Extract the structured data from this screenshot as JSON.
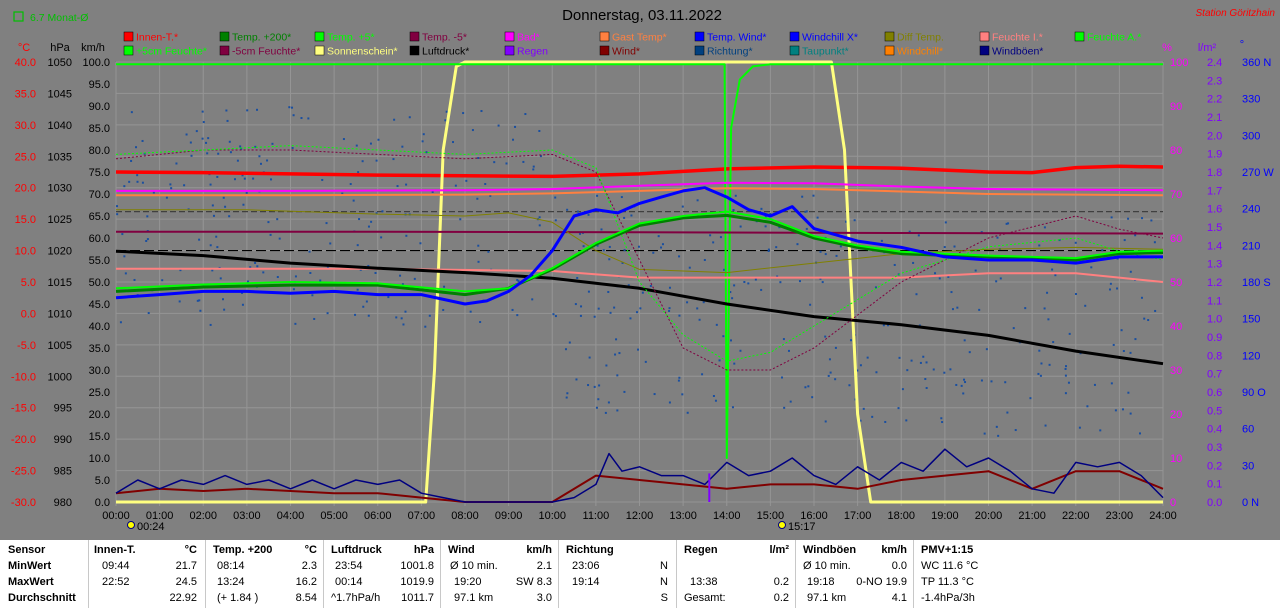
{
  "header": {
    "title": "Donnerstag, 03.11.2022",
    "station": "Station Göritzhain",
    "monthly": "6.7 Monat-Ø"
  },
  "legend": [
    {
      "label": "Innen-T.*",
      "color": "#ff0000"
    },
    {
      "label": "Temp. +200*",
      "color": "#008000"
    },
    {
      "label": "Temp. +5*",
      "color": "#00ff00"
    },
    {
      "label": "Temp. -5*",
      "color": "#800040"
    },
    {
      "label": "Bad*",
      "color": "#ff00ff"
    },
    {
      "label": "Gast Temp*",
      "color": "#ff8040"
    },
    {
      "label": "Temp. Wind*",
      "color": "#0000ff"
    },
    {
      "label": "Windchill X*",
      "color": "#0000ff"
    },
    {
      "label": "Diff Temp.",
      "color": "#808000"
    },
    {
      "label": "Feuchte I.*",
      "color": "#ff8080"
    },
    {
      "label": "Feuchte A.*",
      "color": "#00ff00"
    },
    {
      "label": "+5cm Feuchte*",
      "color": "#00ff00"
    },
    {
      "label": "-5cm Feuchte*",
      "color": "#800040"
    },
    {
      "label": "Sonnenschein*",
      "color": "#ffff80"
    },
    {
      "label": "Luftdruck*",
      "color": "#000000"
    },
    {
      "label": "Regen",
      "color": "#8000ff"
    },
    {
      "label": "Wind*",
      "color": "#800000"
    },
    {
      "label": "Richtung*",
      "color": "#004080"
    },
    {
      "label": "Taupunkt*",
      "color": "#008080"
    },
    {
      "label": "Windchill*",
      "color": "#ff8000"
    },
    {
      "label": "Windböen*",
      "color": "#000080"
    }
  ],
  "axes": {
    "unit_c": "°C",
    "unit_hpa": "hPa",
    "unit_kmh": "km/h",
    "unit_pct": "%",
    "unit_lm2": "l/m²",
    "unit_deg": "°",
    "celsius": [
      "40.0",
      "35.0",
      "30.0",
      "25.0",
      "20.0",
      "15.0",
      "10.0",
      "5.0",
      "0.0",
      "-5.0",
      "-10.0",
      "-15.0",
      "-20.0",
      "-25.0",
      "-30.0"
    ],
    "hpa": [
      "1050",
      "1045",
      "1040",
      "1035",
      "1030",
      "1025",
      "1020",
      "1015",
      "1010",
      "1005",
      "1000",
      "995",
      "990",
      "985",
      "980"
    ],
    "kmh": [
      "100.0",
      "95.0",
      "90.0",
      "85.0",
      "80.0",
      "75.0",
      "70.0",
      "65.0",
      "60.0",
      "55.0",
      "50.0",
      "45.0",
      "40.0",
      "35.0",
      "30.0",
      "25.0",
      "20.0",
      "15.0",
      "10.0",
      "5.0",
      "0.0"
    ],
    "pct": [
      "100",
      "90",
      "80",
      "70",
      "60",
      "50",
      "40",
      "30",
      "20",
      "10",
      "0"
    ],
    "rain": [
      "2.4",
      "2.3",
      "2.2",
      "2.1",
      "2.0",
      "1.9",
      "1.8",
      "1.7",
      "1.6",
      "1.5",
      "1.4",
      "1.3",
      "1.2",
      "1.1",
      "1.0",
      "0.9",
      "0.8",
      "0.7",
      "0.6",
      "0.5",
      "0.4",
      "0.3",
      "0.2",
      "0.1",
      "0.0"
    ],
    "direction": [
      "360 N",
      "330",
      "300",
      "270 W",
      "240",
      "210",
      "180 S",
      "150",
      "120",
      "90 O",
      "60",
      "30",
      "0 N"
    ],
    "hours": [
      "00:00",
      "01:00",
      "02:00",
      "03:00",
      "04:00",
      "05:00",
      "06:00",
      "07:00",
      "08:00",
      "09:00",
      "10:00",
      "11:00",
      "12:00",
      "13:00",
      "14:00",
      "15:00",
      "16:00",
      "17:00",
      "18:00",
      "19:00",
      "20:00",
      "21:00",
      "22:00",
      "23:00",
      "24:00"
    ],
    "sunrise": "00:24",
    "sunset": "15:17"
  },
  "chart_data": {
    "type": "line",
    "x_unit": "hour",
    "xlim": [
      0,
      24
    ],
    "ylim_celsius": [
      -30,
      40
    ],
    "ylim_kmh": [
      0,
      100
    ],
    "ylim_pct": [
      0,
      100
    ],
    "series": [
      {
        "name": "Innen-T.*",
        "axis": "celsius",
        "color": "#ff0000",
        "width": 3.5,
        "x": [
          0,
          2,
          4,
          6,
          8,
          10,
          12,
          14,
          16,
          18,
          20,
          21,
          22,
          23,
          24
        ],
        "y": [
          22.5,
          22.4,
          22.2,
          22.0,
          21.9,
          21.8,
          22.2,
          23.0,
          23.3,
          23.1,
          22.5,
          22.4,
          23.2,
          23.4,
          23.3
        ]
      },
      {
        "name": "Sonnenschein*",
        "axis": "pct",
        "color": "#ffff80",
        "width": 3,
        "x": [
          0,
          7.1,
          7.3,
          7.5,
          7.8,
          8,
          16.4,
          16.7,
          17,
          17.3,
          24
        ],
        "y": [
          0,
          0,
          30,
          80,
          99,
          100,
          100,
          80,
          20,
          0,
          0
        ]
      },
      {
        "name": "Feuchte A.*",
        "axis": "pct",
        "color": "#00ff00",
        "width": 2,
        "x": [
          0,
          13.95,
          14.0,
          14.1,
          14.3,
          14.6,
          15,
          24
        ],
        "y": [
          99.5,
          99.5,
          10,
          85,
          96,
          99,
          99.5,
          99.5
        ]
      },
      {
        "name": "Bad*",
        "axis": "celsius",
        "color": "#ff00ff",
        "width": 2,
        "x": [
          0,
          4,
          8,
          10,
          12,
          14,
          16,
          18,
          20,
          22,
          24
        ],
        "y": [
          19.5,
          19.5,
          19.6,
          19.8,
          20.3,
          20.8,
          20.7,
          20.2,
          19.8,
          19.7,
          19.6
        ]
      },
      {
        "name": "Gast Temp*",
        "axis": "celsius",
        "color": "#ff8040",
        "width": 2,
        "x": [
          0,
          4,
          8,
          10,
          12,
          14,
          16,
          18,
          20,
          22,
          24
        ],
        "y": [
          18.8,
          18.8,
          18.9,
          19.1,
          19.5,
          19.9,
          19.8,
          19.4,
          19.0,
          18.9,
          18.8
        ]
      },
      {
        "name": "Temp. -5*",
        "axis": "celsius",
        "color": "#800040",
        "width": 2,
        "x": [
          0,
          6,
          12,
          18,
          24
        ],
        "y": [
          13.0,
          13.0,
          12.9,
          12.8,
          12.7
        ]
      },
      {
        "name": "Feuchte I.*",
        "axis": "pct",
        "color": "#ff8080",
        "width": 2,
        "x": [
          0,
          6,
          10,
          12,
          14,
          16,
          18,
          20,
          22,
          24
        ],
        "y": [
          53,
          53,
          52.5,
          51,
          51,
          51,
          51,
          52,
          52,
          50
        ]
      },
      {
        "name": "Luftdruck*",
        "axis": "hpa",
        "color": "#000000",
        "width": 3,
        "x": [
          0,
          2,
          4,
          6,
          8,
          10,
          12,
          14,
          16,
          18,
          20,
          22,
          24
        ],
        "y": [
          1019.9,
          1019.2,
          1018.0,
          1017.2,
          1016.5,
          1015.6,
          1014.0,
          1011.5,
          1009.5,
          1008.2,
          1006.5,
          1004.0,
          1002.0
        ]
      },
      {
        "name": "Diff Temp.",
        "axis": "celsius",
        "color": "#808000",
        "width": 1,
        "x": [
          0,
          3,
          6,
          8,
          9,
          10,
          11,
          12,
          14,
          16,
          18,
          20,
          22,
          24
        ],
        "y": [
          16.5,
          16.5,
          15.8,
          15.5,
          16.0,
          14.5,
          10.0,
          7.0,
          6.5,
          8.0,
          9.5,
          10.2,
          10.5,
          10.2
        ]
      },
      {
        "name": "-5cm Feuchte*",
        "axis": "pct",
        "color": "#800040",
        "width": 1,
        "dash": "2,2",
        "x": [
          0,
          2,
          4,
          6,
          8,
          10,
          11,
          12,
          13,
          14,
          15,
          16,
          18,
          20,
          22,
          23,
          24
        ],
        "y": [
          78,
          80,
          80,
          79,
          78,
          79,
          75,
          55,
          35,
          30,
          30,
          35,
          50,
          60,
          65,
          62,
          60
        ]
      },
      {
        "name": "+5cm Feuchte*",
        "axis": "pct",
        "color": "#00ff00",
        "width": 1,
        "dash": "2,2",
        "x": [
          0,
          2,
          4,
          6,
          8,
          10,
          11,
          12,
          13,
          14,
          15,
          16,
          18,
          20,
          22,
          23,
          24
        ],
        "y": [
          79,
          80,
          81,
          80,
          79,
          80,
          76,
          50,
          38,
          32,
          34,
          40,
          52,
          58,
          60,
          57,
          55
        ]
      },
      {
        "name": "Temp. +200*",
        "axis": "celsius",
        "color": "#008000",
        "width": 3,
        "x": [
          0,
          2,
          4,
          6,
          8,
          9,
          10,
          11,
          12,
          13,
          14,
          15,
          16,
          17,
          18,
          20,
          22,
          23,
          24
        ],
        "y": [
          3.5,
          4.2,
          4.5,
          4.5,
          3.0,
          4.0,
          7.0,
          11.0,
          14.0,
          15.2,
          15.6,
          14.5,
          12.0,
          10.5,
          9.5,
          9.0,
          8.5,
          9.5,
          9.7
        ]
      },
      {
        "name": "Temp. +5*",
        "axis": "celsius",
        "color": "#00ff00",
        "width": 2,
        "x": [
          0,
          2,
          4,
          6,
          8,
          9,
          10,
          11,
          12,
          13,
          14,
          15,
          16,
          17,
          18,
          20,
          22,
          23,
          24
        ],
        "y": [
          4.0,
          4.6,
          5.0,
          4.8,
          3.5,
          4.0,
          7.2,
          11.2,
          14.3,
          15.5,
          16.2,
          15.0,
          12.3,
          10.8,
          9.8,
          9.2,
          8.8,
          9.8,
          10.0
        ]
      },
      {
        "name": "Temp. Wind*",
        "axis": "celsius",
        "color": "#0000ff",
        "width": 3,
        "x": [
          0,
          1,
          2,
          3,
          4,
          5,
          6,
          7,
          8,
          8.5,
          9,
          9.5,
          10,
          10.5,
          11,
          11.5,
          12,
          12.5,
          13,
          13.5,
          14,
          14.5,
          15,
          15.5,
          16,
          17,
          18,
          19,
          20,
          21,
          22,
          23,
          24
        ],
        "y": [
          2.5,
          3.0,
          3.5,
          3.5,
          3.2,
          3.5,
          3.0,
          3.0,
          1.5,
          2.0,
          3.5,
          6.0,
          10.0,
          15.5,
          16.5,
          16.0,
          17.5,
          18.5,
          19.5,
          20.0,
          18.5,
          16.5,
          15.5,
          17.0,
          13.5,
          11.5,
          10.5,
          9.0,
          8.5,
          8.5,
          8.0,
          9.0,
          9.0
        ]
      },
      {
        "name": "Wind*",
        "axis": "kmh",
        "color": "#800000",
        "width": 2,
        "x": [
          0,
          1,
          2,
          3,
          4,
          5,
          6,
          7,
          8,
          9,
          10,
          11,
          12,
          13,
          14,
          15,
          16,
          17,
          18,
          19,
          20,
          21,
          22,
          23,
          24
        ],
        "y": [
          2,
          3,
          2.5,
          3,
          2.5,
          2,
          2,
          1,
          0,
          0,
          0,
          6,
          5,
          4,
          3,
          4,
          4,
          3,
          5,
          6,
          7,
          3,
          7,
          7,
          3
        ]
      },
      {
        "name": "Windböen*",
        "axis": "kmh",
        "color": "#000080",
        "width": 1.5,
        "x": [
          0,
          0.5,
          1,
          1.5,
          2,
          2.5,
          3,
          3.5,
          4,
          4.5,
          5,
          5.5,
          6,
          6.5,
          7,
          7.5,
          8,
          9,
          10,
          10.5,
          11,
          11.3,
          11.6,
          12,
          12.5,
          13,
          13.5,
          14,
          14.5,
          15,
          15.5,
          16,
          16.5,
          17,
          17.5,
          18,
          18.5,
          19,
          19.5,
          20,
          20.5,
          21,
          21.5,
          22,
          22.5,
          23,
          23.5,
          24
        ],
        "y": [
          2,
          5,
          3,
          5,
          4,
          6,
          4,
          5,
          3,
          5,
          3,
          5,
          4,
          5,
          2,
          1,
          0,
          0,
          0,
          1,
          4,
          11,
          7,
          8,
          6,
          6,
          4,
          9,
          6,
          7,
          10,
          6,
          4,
          8,
          5,
          9,
          7,
          12,
          8,
          10,
          7,
          3,
          2,
          9,
          8,
          9,
          6,
          1
        ]
      },
      {
        "name": "Regen",
        "axis": "kmh",
        "color": "#8000ff",
        "width": 2,
        "x": [
          13.6,
          13.6
        ],
        "y": [
          0,
          6.5
        ]
      }
    ],
    "reference_lines": [
      {
        "axis": "celsius",
        "value": 10.0,
        "color": "#000000",
        "dash": "10,4"
      },
      {
        "axis": "celsius",
        "value": 16.2,
        "color": "#404040",
        "dash": "6,3"
      }
    ]
  },
  "stats": {
    "sensor": {
      "header": "Sensor",
      "min": "MinWert",
      "max": "MaxWert",
      "avg": "Durchschnitt"
    },
    "innen": {
      "header": "Innen-T.",
      "unit": "°C",
      "min_time": "09:44",
      "min_val": "21.7",
      "max_time": "22:52",
      "max_val": "24.5",
      "avg_val": "22.92"
    },
    "temp200": {
      "header": "Temp. +200",
      "unit": "°C",
      "min_time": "08:14",
      "min_val": "2.3",
      "max_time": "13:24",
      "max_val": "16.2",
      "avg_note": "(+ 1.84 )",
      "avg_val": "8.54"
    },
    "luftdruck": {
      "header": "Luftdruck",
      "unit": "hPa",
      "min_time": "23:54",
      "min_val": "1001.8",
      "max_time": "00:14",
      "max_val": "1019.9",
      "avg_note": "^1.7hPa/h",
      "avg_val": "1011.7"
    },
    "wind": {
      "header": "Wind",
      "unit": "km/h",
      "min_label": "Ø 10 min.",
      "min_val": "2.1",
      "max_time": "19:20",
      "max_val": "SW 8.3",
      "avg_note": "97.1 km",
      "avg_val": "3.0"
    },
    "richtung": {
      "header": "Richtung",
      "min_time": "23:06",
      "min_val": "N",
      "max_time": "19:14",
      "max_val": "N",
      "avg_val": "S"
    },
    "regen": {
      "header": "Regen",
      "unit": "l/m²",
      "max_time": "13:38",
      "max_val": "0.2",
      "avg_label": "Gesamt:",
      "avg_val": "0.2"
    },
    "boeen": {
      "header": "Windböen",
      "unit": "km/h",
      "min_label": "Ø 10 min.",
      "min_val": "0.0",
      "max_time": "19:18",
      "max_val": "0-NO 19.9",
      "avg_note": "97.1 km",
      "avg_val": "4.1"
    },
    "pmv": {
      "header": "PMV+1:15",
      "line1": "WC 11.6 °C",
      "line2": "TP 11.3 °C",
      "line3": "-1.4hPa/3h"
    }
  }
}
